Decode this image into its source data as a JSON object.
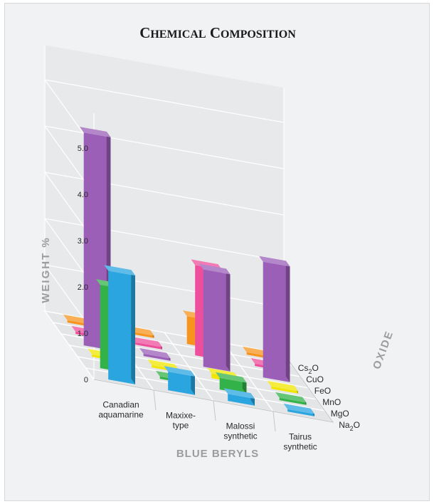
{
  "chart_data": {
    "type": "bar",
    "variant": "3d-grouped",
    "title": "Chemical Composition",
    "xlabel": "Blue Beryls",
    "ylabel": "Weight %",
    "zlabel": "Oxide",
    "ylim": [
      0,
      5
    ],
    "yticks": [
      "0",
      "1.0",
      "2.0",
      "3.0",
      "4.0",
      "5.0"
    ],
    "categories": [
      [
        "Canadian",
        "aquamarine"
      ],
      [
        "Maxixe-",
        "type"
      ],
      [
        "Malossi",
        "synthetic"
      ],
      [
        "Tairus",
        "synthetic"
      ]
    ],
    "series": [
      {
        "name": "Na2O",
        "color": "#2aa5e0",
        "values": [
          2.35,
          0.4,
          0.15,
          0.05
        ]
      },
      {
        "name": "MgO",
        "color": "#33b24a",
        "values": [
          1.8,
          0.05,
          0.25,
          0.05
        ]
      },
      {
        "name": "MnO",
        "color": "#f2e600",
        "values": [
          0.05,
          0.05,
          0.1,
          0.05
        ]
      },
      {
        "name": "FeO",
        "color": "#9b5fb8",
        "values": [
          4.6,
          0.05,
          2.1,
          2.5
        ]
      },
      {
        "name": "CuO",
        "color": "#ee4f9c",
        "values": [
          0.05,
          0.05,
          1.95,
          0.05
        ]
      },
      {
        "name": "Cs2O",
        "color": "#f7941d",
        "values": [
          0.05,
          0.05,
          0.6,
          0.05
        ]
      }
    ],
    "oxide_labels": [
      {
        "base": "Cs",
        "sub": "2",
        "tail": "O"
      },
      {
        "base": "CuO",
        "sub": "",
        "tail": ""
      },
      {
        "base": "FeO",
        "sub": "",
        "tail": ""
      },
      {
        "base": "MnO",
        "sub": "",
        "tail": ""
      },
      {
        "base": "MgO",
        "sub": "",
        "tail": ""
      },
      {
        "base": "Na",
        "sub": "2",
        "tail": "O"
      }
    ],
    "grid": true
  }
}
